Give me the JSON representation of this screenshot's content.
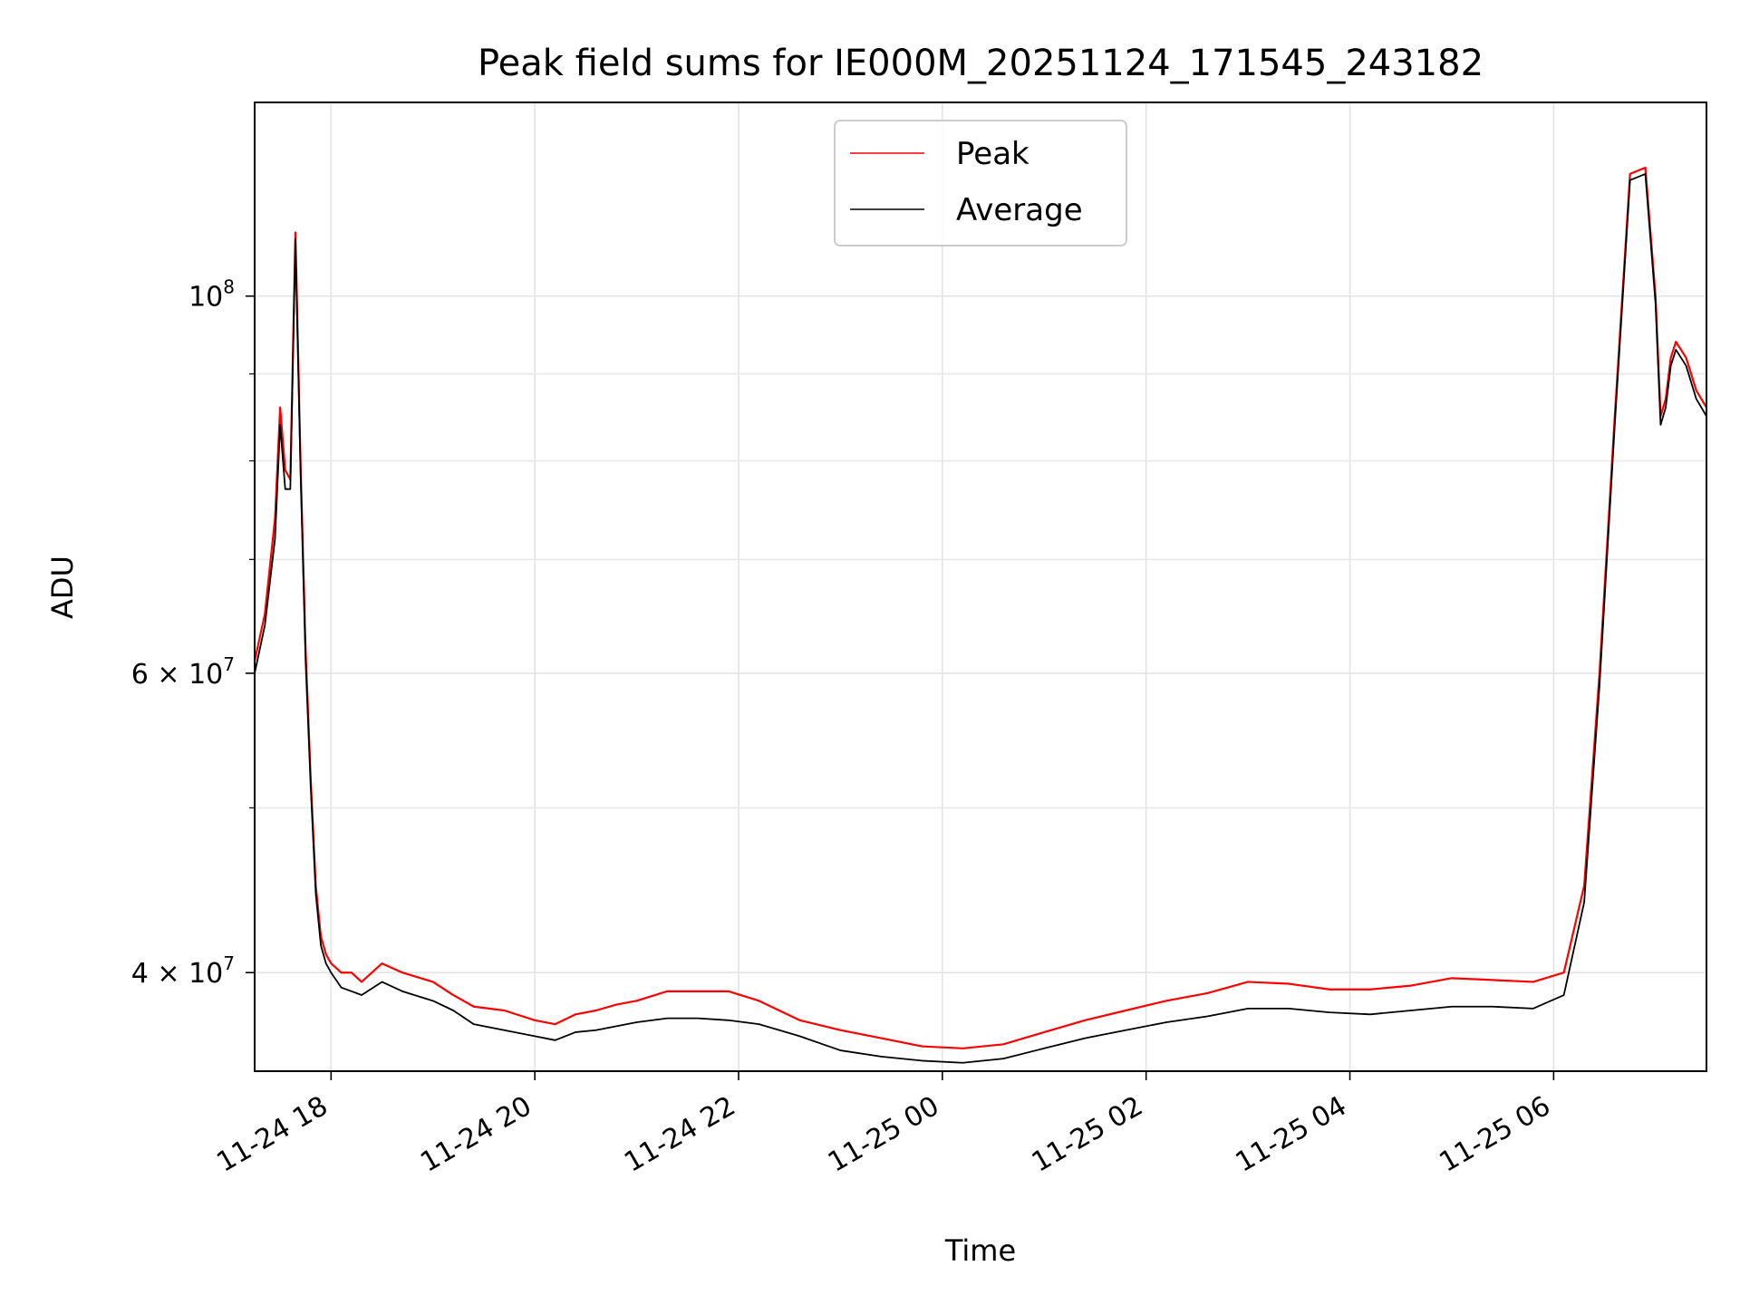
{
  "chart_data": {
    "type": "line",
    "title": "Peak field sums for IE000M_20251124_171545_243182",
    "xlabel": "Time",
    "ylabel": "ADU",
    "yscale": "log",
    "xlim": [
      -0.75,
      13.5
    ],
    "ylim": [
      35000000,
      130000000
    ],
    "grid": true,
    "legend_position": "top-center",
    "x_ticks": [
      {
        "value": 0,
        "label": "11-24 18"
      },
      {
        "value": 2,
        "label": "11-24 20"
      },
      {
        "value": 4,
        "label": "11-24 22"
      },
      {
        "value": 6,
        "label": "11-25 00"
      },
      {
        "value": 8,
        "label": "11-25 02"
      },
      {
        "value": 10,
        "label": "11-25 04"
      },
      {
        "value": 12,
        "label": "11-25 06"
      }
    ],
    "y_major_ticks": [
      {
        "value": 100000000,
        "base": "10",
        "exp": "8"
      },
      {
        "value": 60000000,
        "base": "6 × 10",
        "exp": "7"
      },
      {
        "value": 40000000,
        "base": "4 × 10",
        "exp": "7"
      }
    ],
    "y_minor_gridlines": [
      50000000,
      70000000,
      80000000,
      90000000
    ],
    "series": [
      {
        "name": "Peak",
        "color": "#ff0000",
        "x": [
          -0.75,
          -0.65,
          -0.55,
          -0.5,
          -0.45,
          -0.4,
          -0.35,
          -0.3,
          -0.25,
          -0.2,
          -0.15,
          -0.1,
          -0.05,
          0.0,
          0.1,
          0.2,
          0.3,
          0.5,
          0.7,
          1.0,
          1.2,
          1.4,
          1.7,
          2.0,
          2.2,
          2.4,
          2.6,
          2.8,
          3.0,
          3.3,
          3.6,
          3.9,
          4.2,
          4.6,
          5.0,
          5.4,
          5.8,
          6.2,
          6.6,
          7.0,
          7.4,
          7.8,
          8.2,
          8.6,
          9.0,
          9.4,
          9.8,
          10.2,
          10.6,
          11.0,
          11.4,
          11.8,
          12.1,
          12.3,
          12.45,
          12.6,
          12.75,
          12.9,
          13.0,
          13.05,
          13.1,
          13.15,
          13.2,
          13.3,
          13.4,
          13.5
        ],
        "y": [
          61000000,
          65000000,
          74000000,
          86000000,
          79000000,
          78000000,
          109000000,
          80000000,
          62000000,
          52000000,
          45000000,
          42000000,
          41000000,
          40500000,
          40000000,
          40000000,
          39500000,
          40500000,
          40000000,
          39500000,
          38800000,
          38200000,
          38000000,
          37500000,
          37300000,
          37800000,
          38000000,
          38300000,
          38500000,
          39000000,
          39000000,
          39000000,
          38500000,
          37500000,
          37000000,
          36600000,
          36200000,
          36100000,
          36300000,
          36900000,
          37500000,
          38000000,
          38500000,
          38900000,
          39500000,
          39400000,
          39100000,
          39100000,
          39300000,
          39700000,
          39600000,
          39500000,
          40000000,
          45000000,
          60000000,
          85000000,
          118000000,
          119000000,
          100000000,
          85000000,
          87000000,
          92000000,
          94000000,
          92000000,
          88000000,
          86000000
        ]
      },
      {
        "name": "Average",
        "color": "#000000",
        "x": [
          -0.75,
          -0.65,
          -0.55,
          -0.5,
          -0.45,
          -0.4,
          -0.35,
          -0.3,
          -0.25,
          -0.2,
          -0.15,
          -0.1,
          -0.05,
          0.0,
          0.1,
          0.2,
          0.3,
          0.5,
          0.7,
          1.0,
          1.2,
          1.4,
          1.7,
          2.0,
          2.2,
          2.4,
          2.6,
          2.8,
          3.0,
          3.3,
          3.6,
          3.9,
          4.2,
          4.6,
          5.0,
          5.4,
          5.8,
          6.2,
          6.6,
          7.0,
          7.4,
          7.8,
          8.2,
          8.6,
          9.0,
          9.4,
          9.8,
          10.2,
          10.6,
          11.0,
          11.4,
          11.8,
          12.1,
          12.3,
          12.45,
          12.6,
          12.75,
          12.9,
          13.0,
          13.05,
          13.1,
          13.15,
          13.2,
          13.3,
          13.4,
          13.5
        ],
        "y": [
          60000000,
          64000000,
          72000000,
          84000000,
          77000000,
          77000000,
          108000000,
          79000000,
          61000000,
          51500000,
          44500000,
          41500000,
          40500000,
          40000000,
          39200000,
          39000000,
          38800000,
          39500000,
          39000000,
          38500000,
          38000000,
          37300000,
          37000000,
          36700000,
          36500000,
          36900000,
          37000000,
          37200000,
          37400000,
          37600000,
          37600000,
          37500000,
          37300000,
          36700000,
          36000000,
          35700000,
          35500000,
          35400000,
          35600000,
          36100000,
          36600000,
          37000000,
          37400000,
          37700000,
          38100000,
          38100000,
          37900000,
          37800000,
          38000000,
          38200000,
          38200000,
          38100000,
          38800000,
          44000000,
          59000000,
          84000000,
          117000000,
          118000000,
          99000000,
          84000000,
          86000000,
          91000000,
          93000000,
          91000000,
          87000000,
          85000000
        ]
      }
    ]
  }
}
